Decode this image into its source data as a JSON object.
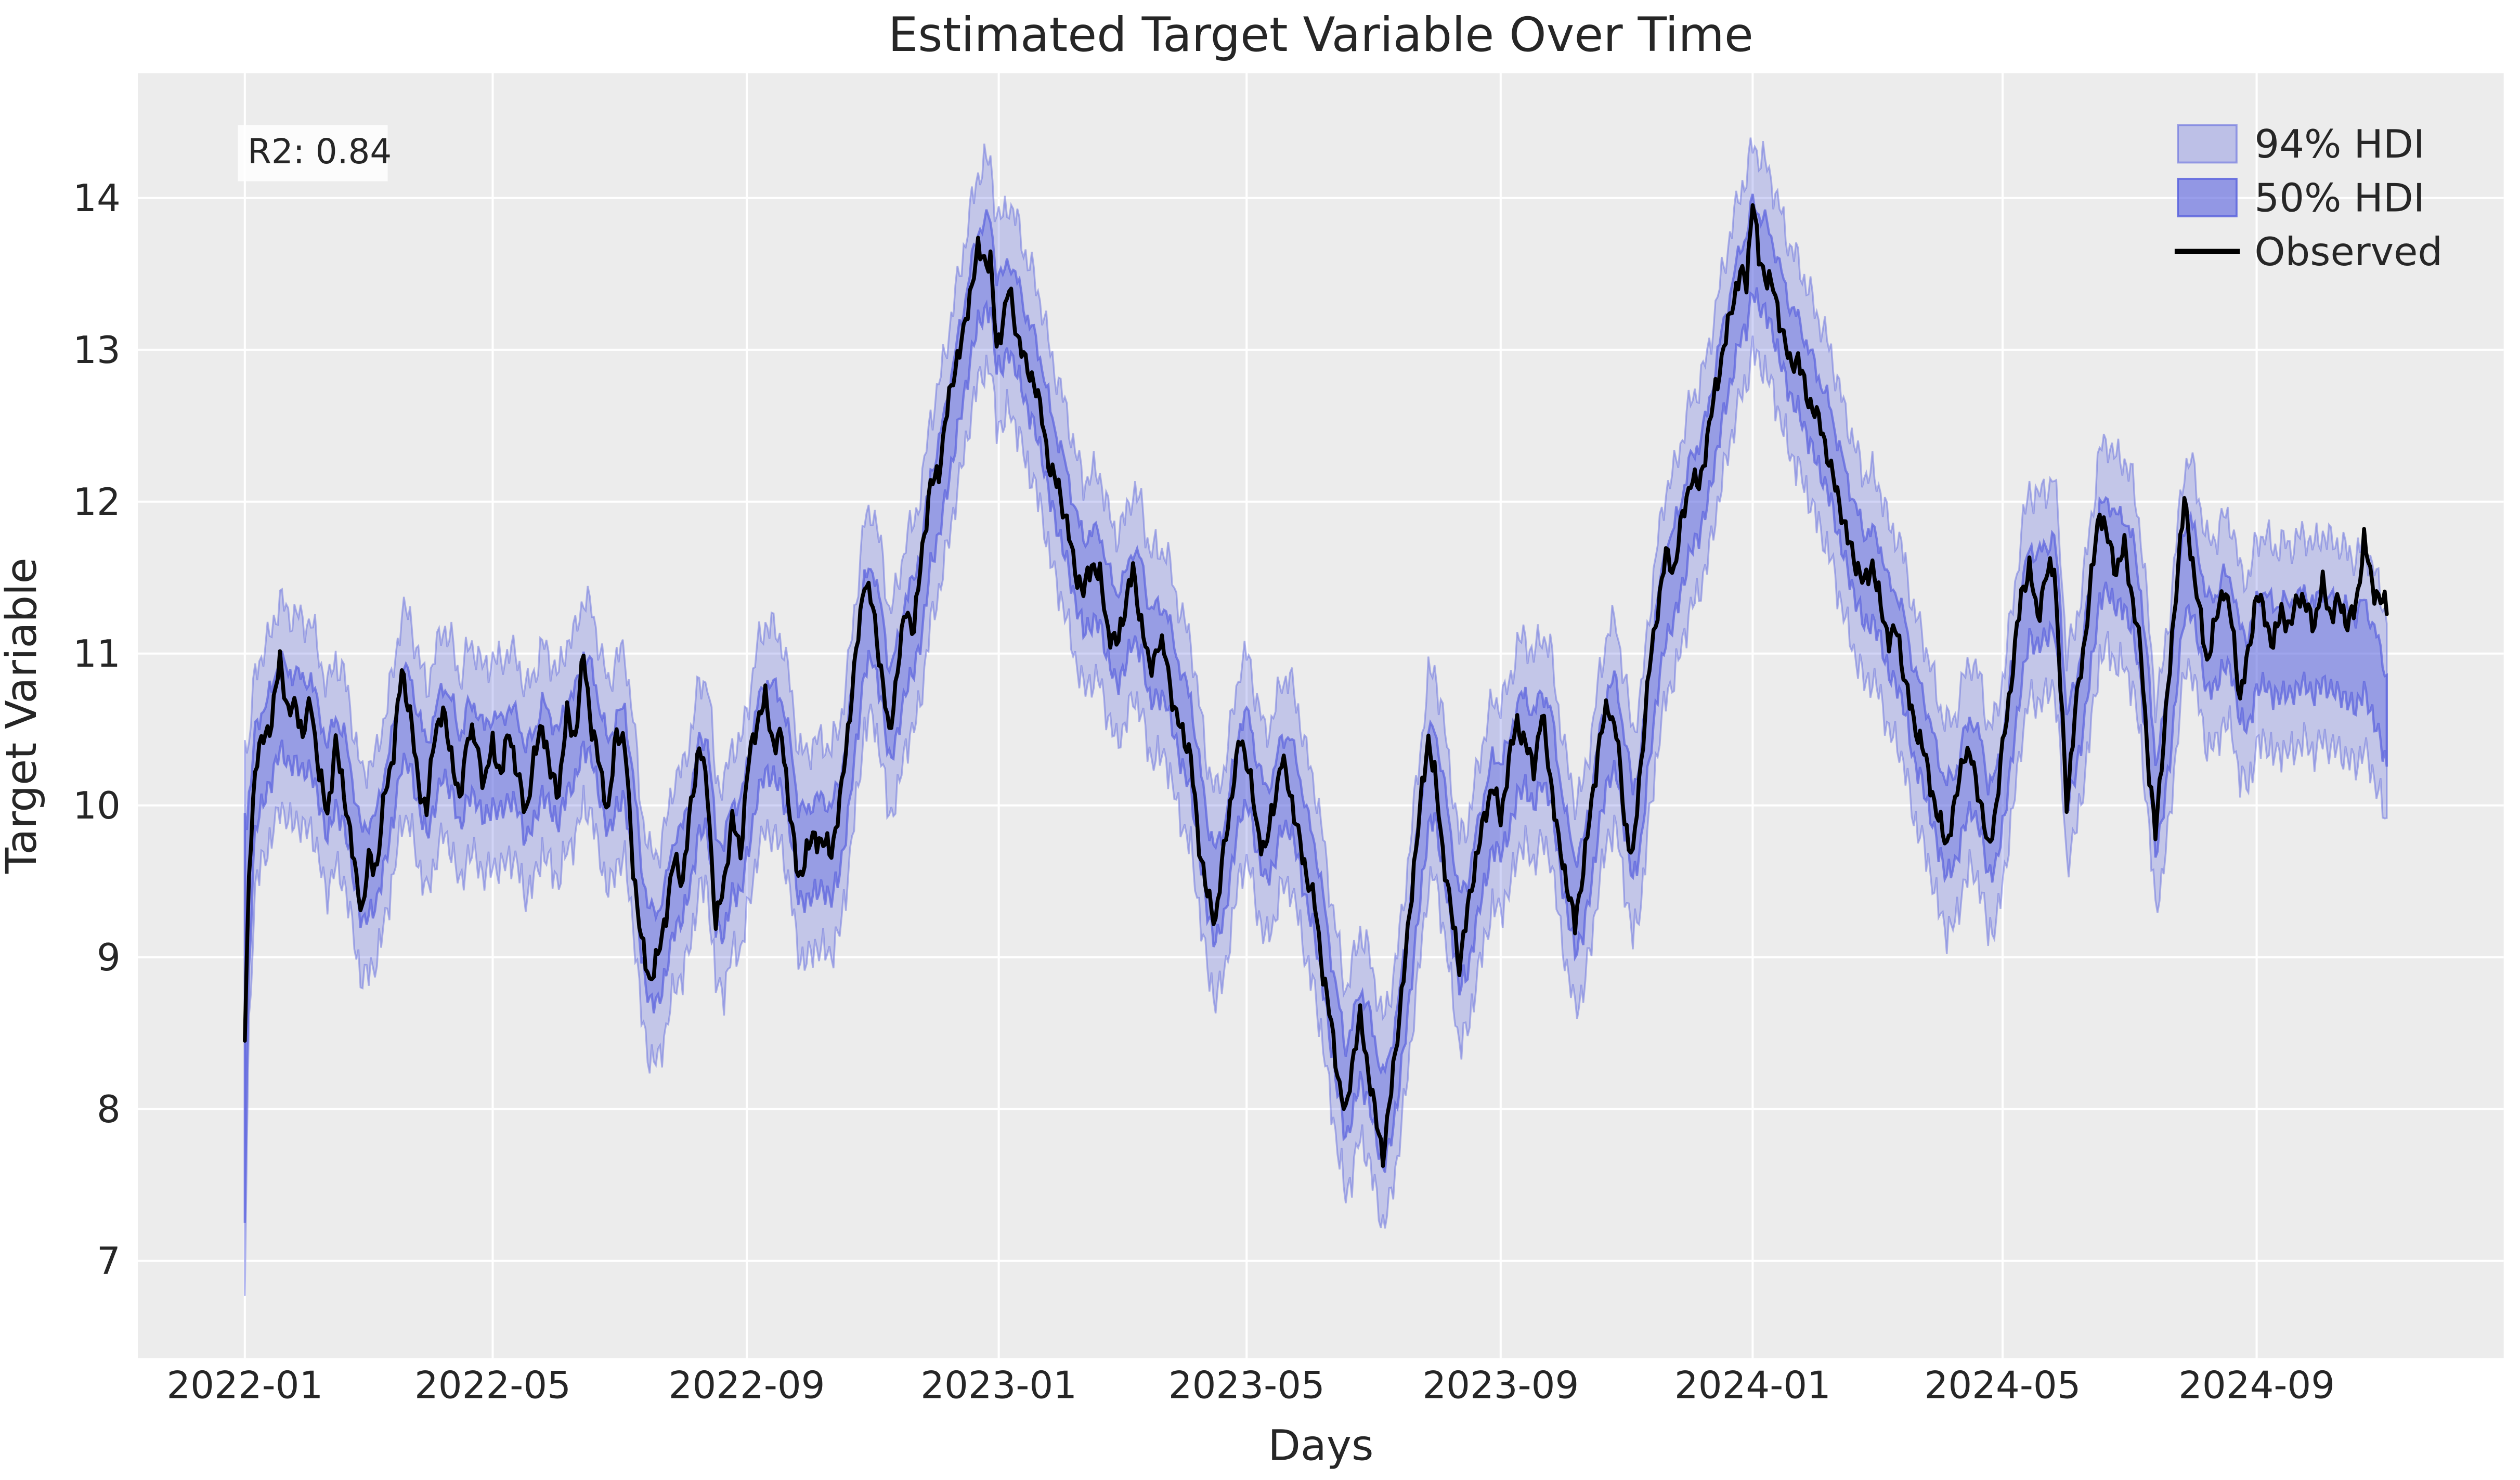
{
  "page": {
    "background": "#ffffff"
  },
  "chart": {
    "title": "Estimated Target Variable Over Time",
    "x_axis": {
      "label": "Days"
    },
    "y_axis": {
      "label": "Target Variable"
    },
    "legend": {
      "items": [
        {
          "label": "94% HDI",
          "swatch": "band-light"
        },
        {
          "label": "50% HDI",
          "swatch": "band-dark"
        },
        {
          "label": "Observed",
          "swatch": "line"
        }
      ]
    },
    "annotation": {
      "label": "R2: 0.84"
    },
    "style": {
      "figure_bg": "#ffffff",
      "axes_bg": "#ececec",
      "grid_color": "#ffffff",
      "band_color": "#5b63de",
      "band94_fill_opacity": 0.28,
      "band94_edge_opacity": 0.45,
      "band50_fill_opacity": 0.42,
      "band50_edge_opacity": 0.72,
      "observed_color": "#000000",
      "text_color": "#262626"
    }
  },
  "chart_data": {
    "type": "line",
    "title": "Estimated Target Variable Over Time",
    "xlabel": "Days",
    "ylabel": "Target Variable",
    "legend_entries": [
      "94% HDI",
      "50% HDI",
      "Observed"
    ],
    "annotation": "R2: 0.84",
    "grid": true,
    "legend_position": "upper right",
    "x_ticks": [
      {
        "label": "2022-01",
        "day": 0
      },
      {
        "label": "2022-05",
        "day": 120
      },
      {
        "label": "2022-09",
        "day": 243
      },
      {
        "label": "2023-01",
        "day": 365
      },
      {
        "label": "2023-05",
        "day": 485
      },
      {
        "label": "2023-09",
        "day": 608
      },
      {
        "label": "2024-01",
        "day": 730
      },
      {
        "label": "2024-05",
        "day": 851
      },
      {
        "label": "2024-09",
        "day": 974
      }
    ],
    "y_ticks": [
      7,
      8,
      9,
      10,
      11,
      12,
      13,
      14
    ],
    "ylim": [
      6.36,
      14.82
    ],
    "xlim_days": [
      -52,
      1094
    ],
    "sample_columns": [
      "day_offset_from_2022-01-01",
      "observed",
      "hdi_center"
    ],
    "samples": [
      [
        0,
        8.45,
        8.6
      ],
      [
        2,
        9.55,
        9.5
      ],
      [
        5,
        10.25,
        10.15
      ],
      [
        9,
        10.45,
        10.35
      ],
      [
        13,
        10.55,
        10.45
      ],
      [
        17,
        10.97,
        10.7
      ],
      [
        21,
        10.6,
        10.55
      ],
      [
        25,
        10.67,
        10.6
      ],
      [
        28,
        10.45,
        10.5
      ],
      [
        32,
        10.7,
        10.55
      ],
      [
        36,
        10.2,
        10.3
      ],
      [
        40,
        9.95,
        10.1
      ],
      [
        44,
        10.4,
        10.28
      ],
      [
        48,
        10.1,
        10.18
      ],
      [
        53,
        9.6,
        9.8
      ],
      [
        57,
        9.3,
        9.5
      ],
      [
        60,
        9.65,
        9.6
      ],
      [
        64,
        9.6,
        9.65
      ],
      [
        68,
        10.1,
        9.95
      ],
      [
        72,
        10.35,
        10.2
      ],
      [
        76,
        10.9,
        10.6
      ],
      [
        80,
        10.6,
        10.55
      ],
      [
        84,
        10.15,
        10.3
      ],
      [
        88,
        9.95,
        10.1
      ],
      [
        92,
        10.5,
        10.3
      ],
      [
        96,
        10.6,
        10.5
      ],
      [
        100,
        10.35,
        10.4
      ],
      [
        104,
        10.0,
        10.15
      ],
      [
        108,
        10.5,
        10.35
      ],
      [
        112,
        10.4,
        10.35
      ],
      [
        116,
        10.15,
        10.2
      ],
      [
        120,
        10.4,
        10.3
      ],
      [
        124,
        10.2,
        10.25
      ],
      [
        128,
        10.5,
        10.35
      ],
      [
        132,
        10.2,
        10.28
      ],
      [
        136,
        9.95,
        10.08
      ],
      [
        140,
        10.3,
        10.18
      ],
      [
        144,
        10.55,
        10.38
      ],
      [
        148,
        10.2,
        10.28
      ],
      [
        152,
        10.1,
        10.18
      ],
      [
        156,
        10.6,
        10.4
      ],
      [
        160,
        10.45,
        10.45
      ],
      [
        164,
        11.0,
        10.7
      ],
      [
        168,
        10.5,
        10.6
      ],
      [
        172,
        10.25,
        10.35
      ],
      [
        176,
        9.95,
        10.1
      ],
      [
        180,
        10.5,
        10.3
      ],
      [
        184,
        10.4,
        10.32
      ],
      [
        188,
        9.6,
        9.9
      ],
      [
        192,
        9.1,
        9.3
      ],
      [
        196,
        8.85,
        9.0
      ],
      [
        200,
        9.0,
        9.0
      ],
      [
        204,
        9.3,
        9.2
      ],
      [
        208,
        9.65,
        9.5
      ],
      [
        212,
        9.5,
        9.55
      ],
      [
        216,
        10.0,
        9.8
      ],
      [
        220,
        10.4,
        10.12
      ],
      [
        224,
        10.1,
        10.15
      ],
      [
        228,
        9.2,
        9.5
      ],
      [
        232,
        9.5,
        9.45
      ],
      [
        236,
        9.9,
        9.72
      ],
      [
        240,
        9.7,
        9.72
      ],
      [
        244,
        10.3,
        10.02
      ],
      [
        248,
        10.55,
        10.35
      ],
      [
        252,
        10.7,
        10.52
      ],
      [
        256,
        10.4,
        10.48
      ],
      [
        260,
        10.45,
        10.4
      ],
      [
        264,
        9.95,
        10.12
      ],
      [
        268,
        9.5,
        9.7
      ],
      [
        272,
        9.7,
        9.65
      ],
      [
        276,
        9.8,
        9.75
      ],
      [
        280,
        9.75,
        9.73
      ],
      [
        284,
        9.7,
        9.7
      ],
      [
        288,
        10.0,
        9.85
      ],
      [
        292,
        10.5,
        10.22
      ],
      [
        296,
        11.0,
        10.7
      ],
      [
        300,
        11.5,
        11.18
      ],
      [
        304,
        11.3,
        11.28
      ],
      [
        308,
        10.9,
        11.0
      ],
      [
        312,
        10.45,
        10.6
      ],
      [
        316,
        10.9,
        10.75
      ],
      [
        320,
        11.3,
        11.08
      ],
      [
        324,
        11.15,
        11.18
      ],
      [
        328,
        11.7,
        11.45
      ],
      [
        332,
        12.1,
        11.88
      ],
      [
        336,
        12.2,
        12.08
      ],
      [
        340,
        12.6,
        12.38
      ],
      [
        344,
        12.9,
        12.68
      ],
      [
        348,
        13.1,
        12.98
      ],
      [
        352,
        13.45,
        13.28
      ],
      [
        355,
        13.65,
        13.48
      ],
      [
        358,
        13.6,
        13.55
      ],
      [
        361,
        13.58,
        13.55
      ],
      [
        364,
        13.0,
        13.2
      ],
      [
        367,
        13.2,
        13.18
      ],
      [
        370,
        13.4,
        13.3
      ],
      [
        374,
        13.1,
        13.15
      ],
      [
        378,
        12.9,
        12.95
      ],
      [
        382,
        12.8,
        12.8
      ],
      [
        386,
        12.55,
        12.6
      ],
      [
        390,
        12.2,
        12.3
      ],
      [
        394,
        12.1,
        12.1
      ],
      [
        398,
        11.85,
        11.9
      ],
      [
        402,
        11.55,
        11.65
      ],
      [
        406,
        11.4,
        11.45
      ],
      [
        410,
        11.6,
        11.5
      ],
      [
        414,
        11.5,
        11.5
      ],
      [
        418,
        11.15,
        11.25
      ],
      [
        422,
        11.05,
        11.1
      ],
      [
        426,
        11.3,
        11.2
      ],
      [
        430,
        11.55,
        11.4
      ],
      [
        434,
        11.2,
        11.3
      ],
      [
        438,
        10.9,
        11.0
      ],
      [
        442,
        11.05,
        11.0
      ],
      [
        446,
        11.0,
        11.0
      ],
      [
        450,
        10.6,
        10.75
      ],
      [
        454,
        10.5,
        10.55
      ],
      [
        458,
        10.3,
        10.4
      ],
      [
        462,
        9.75,
        10.0
      ],
      [
        466,
        9.4,
        9.6
      ],
      [
        470,
        9.25,
        9.4
      ],
      [
        474,
        9.7,
        9.55
      ],
      [
        478,
        10.1,
        9.9
      ],
      [
        482,
        10.45,
        10.25
      ],
      [
        486,
        10.25,
        10.3
      ],
      [
        490,
        9.85,
        10.0
      ],
      [
        494,
        9.7,
        9.8
      ],
      [
        498,
        10.0,
        9.9
      ],
      [
        502,
        10.3,
        10.15
      ],
      [
        506,
        10.1,
        10.15
      ],
      [
        510,
        9.8,
        9.95
      ],
      [
        514,
        9.55,
        9.65
      ],
      [
        518,
        9.35,
        9.45
      ],
      [
        522,
        8.9,
        9.1
      ],
      [
        526,
        8.55,
        8.7
      ],
      [
        530,
        8.15,
        8.35
      ],
      [
        533,
        7.95,
        8.1
      ],
      [
        536,
        8.3,
        8.25
      ],
      [
        540,
        8.6,
        8.5
      ],
      [
        544,
        8.25,
        8.35
      ],
      [
        548,
        7.9,
        8.1
      ],
      [
        551,
        7.7,
        7.9
      ],
      [
        554,
        8.0,
        8.05
      ],
      [
        558,
        8.5,
        8.35
      ],
      [
        562,
        9.0,
        8.8
      ],
      [
        566,
        9.6,
        9.3
      ],
      [
        570,
        10.1,
        9.8
      ],
      [
        573,
        10.45,
        10.15
      ],
      [
        576,
        10.2,
        10.22
      ],
      [
        580,
        9.7,
        9.9
      ],
      [
        584,
        9.3,
        9.5
      ],
      [
        588,
        8.95,
        9.1
      ],
      [
        592,
        9.3,
        9.2
      ],
      [
        596,
        9.65,
        9.5
      ],
      [
        600,
        9.9,
        9.78
      ],
      [
        604,
        10.15,
        10.0
      ],
      [
        608,
        9.9,
        10.0
      ],
      [
        612,
        10.3,
        10.1
      ],
      [
        616,
        10.55,
        10.38
      ],
      [
        620,
        10.4,
        10.42
      ],
      [
        624,
        10.25,
        10.3
      ],
      [
        628,
        10.6,
        10.45
      ],
      [
        632,
        10.2,
        10.35
      ],
      [
        636,
        9.75,
        9.95
      ],
      [
        640,
        9.5,
        9.6
      ],
      [
        644,
        9.2,
        9.35
      ],
      [
        648,
        9.6,
        9.45
      ],
      [
        652,
        10.0,
        9.8
      ],
      [
        656,
        10.45,
        10.18
      ],
      [
        660,
        10.65,
        10.48
      ],
      [
        664,
        10.5,
        10.52
      ],
      [
        668,
        9.9,
        10.15
      ],
      [
        672,
        9.65,
        9.8
      ],
      [
        676,
        10.3,
        10.05
      ],
      [
        680,
        10.9,
        10.6
      ],
      [
        684,
        11.3,
        11.05
      ],
      [
        688,
        11.65,
        11.4
      ],
      [
        692,
        11.55,
        11.52
      ],
      [
        696,
        11.9,
        11.75
      ],
      [
        700,
        12.15,
        11.98
      ],
      [
        704,
        12.1,
        12.08
      ],
      [
        708,
        12.4,
        12.28
      ],
      [
        712,
        12.75,
        12.58
      ],
      [
        716,
        13.0,
        12.88
      ],
      [
        720,
        13.3,
        13.12
      ],
      [
        724,
        13.5,
        13.38
      ],
      [
        727,
        13.45,
        13.45
      ],
      [
        730,
        14.0,
        13.68
      ],
      [
        733,
        13.6,
        13.6
      ],
      [
        736,
        13.5,
        13.55
      ],
      [
        740,
        13.4,
        13.4
      ],
      [
        744,
        13.15,
        13.2
      ],
      [
        748,
        12.9,
        13.0
      ],
      [
        752,
        12.95,
        12.9
      ],
      [
        756,
        12.7,
        12.75
      ],
      [
        760,
        12.6,
        12.6
      ],
      [
        764,
        12.45,
        12.45
      ],
      [
        768,
        12.2,
        12.3
      ],
      [
        772,
        12.0,
        12.05
      ],
      [
        776,
        11.75,
        11.85
      ],
      [
        780,
        11.6,
        11.65
      ],
      [
        784,
        11.45,
        11.5
      ],
      [
        788,
        11.6,
        11.5
      ],
      [
        792,
        11.3,
        11.4
      ],
      [
        796,
        11.1,
        11.15
      ],
      [
        800,
        11.15,
        11.1
      ],
      [
        804,
        10.8,
        10.9
      ],
      [
        808,
        10.55,
        10.6
      ],
      [
        812,
        10.4,
        10.45
      ],
      [
        816,
        10.15,
        10.25
      ],
      [
        820,
        9.9,
        10.0
      ],
      [
        824,
        9.75,
        9.85
      ],
      [
        828,
        10.0,
        9.9
      ],
      [
        832,
        10.35,
        10.15
      ],
      [
        836,
        10.3,
        10.28
      ],
      [
        840,
        10.05,
        10.15
      ],
      [
        844,
        9.7,
        9.85
      ],
      [
        848,
        10.0,
        9.9
      ],
      [
        852,
        10.5,
        10.25
      ],
      [
        856,
        10.9,
        10.65
      ],
      [
        860,
        11.4,
        11.1
      ],
      [
        864,
        11.55,
        11.4
      ],
      [
        868,
        11.25,
        11.35
      ],
      [
        872,
        11.5,
        11.4
      ],
      [
        876,
        11.6,
        11.48
      ],
      [
        879,
        10.8,
        11.0
      ],
      [
        882,
        10.0,
        10.3
      ],
      [
        886,
        10.6,
        10.48
      ],
      [
        890,
        11.0,
        10.8
      ],
      [
        894,
        11.5,
        11.22
      ],
      [
        898,
        11.95,
        11.65
      ],
      [
        902,
        11.75,
        11.72
      ],
      [
        906,
        11.55,
        11.6
      ],
      [
        910,
        11.7,
        11.6
      ],
      [
        914,
        11.35,
        11.45
      ],
      [
        918,
        11.0,
        11.1
      ],
      [
        922,
        10.2,
        10.5
      ],
      [
        925,
        9.8,
        10.0
      ],
      [
        928,
        10.3,
        10.18
      ],
      [
        932,
        10.9,
        10.6
      ],
      [
        936,
        11.6,
        11.18
      ],
      [
        939,
        12.0,
        11.55
      ],
      [
        942,
        11.7,
        11.6
      ],
      [
        946,
        11.3,
        11.35
      ],
      [
        950,
        10.95,
        11.05
      ],
      [
        954,
        11.2,
        11.08
      ],
      [
        958,
        11.45,
        11.22
      ],
      [
        962,
        11.2,
        11.18
      ],
      [
        966,
        10.7,
        10.85
      ],
      [
        970,
        11.0,
        10.82
      ],
      [
        974,
        11.4,
        11.05
      ],
      [
        978,
        11.25,
        11.12
      ],
      [
        982,
        11.05,
        11.0
      ],
      [
        986,
        11.3,
        11.05
      ],
      [
        990,
        11.15,
        11.02
      ],
      [
        994,
        11.4,
        11.08
      ],
      [
        998,
        11.3,
        11.1
      ],
      [
        1002,
        11.2,
        11.02
      ],
      [
        1006,
        11.45,
        11.12
      ],
      [
        1010,
        11.25,
        11.05
      ],
      [
        1014,
        11.35,
        11.05
      ],
      [
        1018,
        11.2,
        10.98
      ],
      [
        1022,
        11.3,
        10.95
      ],
      [
        1026,
        11.75,
        11.05
      ],
      [
        1030,
        11.45,
        10.9
      ],
      [
        1034,
        11.35,
        10.72
      ],
      [
        1037,
        11.3,
        10.55
      ]
    ],
    "hdi_bands": {
      "hdi50": {
        "halfwidth": 0.3,
        "initial_extra_halfwidth": 1.05,
        "initial_decay_days": 1.5
      },
      "hdi94": {
        "halfwidth": 0.68,
        "initial_extra_halfwidth": 1.15,
        "initial_decay_days": 1.5
      }
    },
    "render_noise": {
      "observed_amp": 0.1,
      "center_amp": 0.09,
      "width_rel_amp": 0.2
    }
  }
}
